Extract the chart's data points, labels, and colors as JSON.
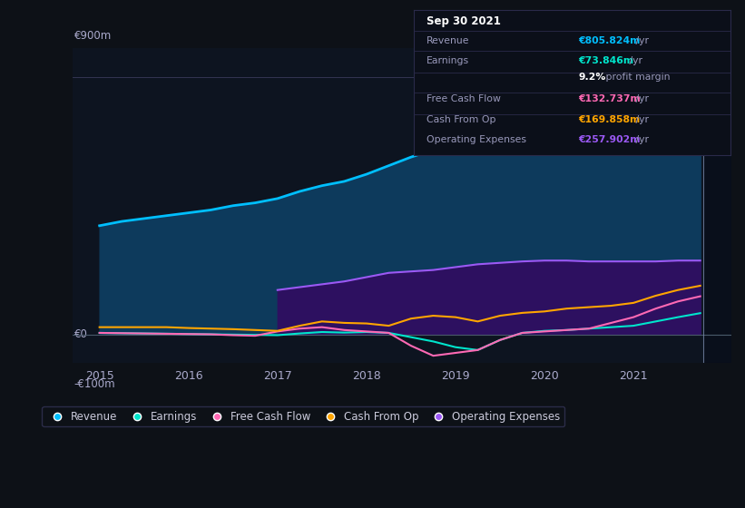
{
  "bg_color": "#0d1117",
  "plot_bg_color": "#0d1420",
  "tooltip": {
    "date": "Sep 30 2021",
    "revenue_val": "€805.824m",
    "revenue_rest": " /yr",
    "earnings_val": "€73.846m",
    "earnings_rest": " /yr",
    "profit_margin_val": "9.2%",
    "profit_margin_rest": " profit margin",
    "fcf_val": "€132.737m",
    "fcf_rest": " /yr",
    "cfo_val": "€169.858m",
    "cfo_rest": " /yr",
    "opex_val": "€257.902m",
    "opex_rest": " /yr"
  },
  "ylim": [
    -100,
    1000
  ],
  "ytick_label_900": "€900m",
  "ytick_label_0": "€0",
  "ytick_neg_label": "-€100m",
  "xlim_start": 2014.7,
  "xlim_end": 2022.1,
  "xticks": [
    2015,
    2016,
    2017,
    2018,
    2019,
    2020,
    2021
  ],
  "vline_x": 2021.78,
  "colors": {
    "revenue": "#00bfff",
    "revenue_fill": "#0d3a5c",
    "earnings": "#00e5cc",
    "free_cash_flow": "#ff69b4",
    "cash_from_op": "#ffa500",
    "op_expenses": "#9b59f5",
    "op_expenses_fill": "#2d1060"
  },
  "legend": [
    {
      "label": "Revenue",
      "color": "#00bfff"
    },
    {
      "label": "Earnings",
      "color": "#00e5cc"
    },
    {
      "label": "Free Cash Flow",
      "color": "#ff69b4"
    },
    {
      "label": "Cash From Op",
      "color": "#ffa500"
    },
    {
      "label": "Operating Expenses",
      "color": "#9b59f5"
    }
  ],
  "x_years": [
    2015.0,
    2015.25,
    2015.5,
    2015.75,
    2016.0,
    2016.25,
    2016.5,
    2016.75,
    2017.0,
    2017.25,
    2017.5,
    2017.75,
    2018.0,
    2018.25,
    2018.5,
    2018.75,
    2019.0,
    2019.25,
    2019.5,
    2019.75,
    2020.0,
    2020.25,
    2020.5,
    2020.75,
    2021.0,
    2021.25,
    2021.5,
    2021.75
  ]
}
